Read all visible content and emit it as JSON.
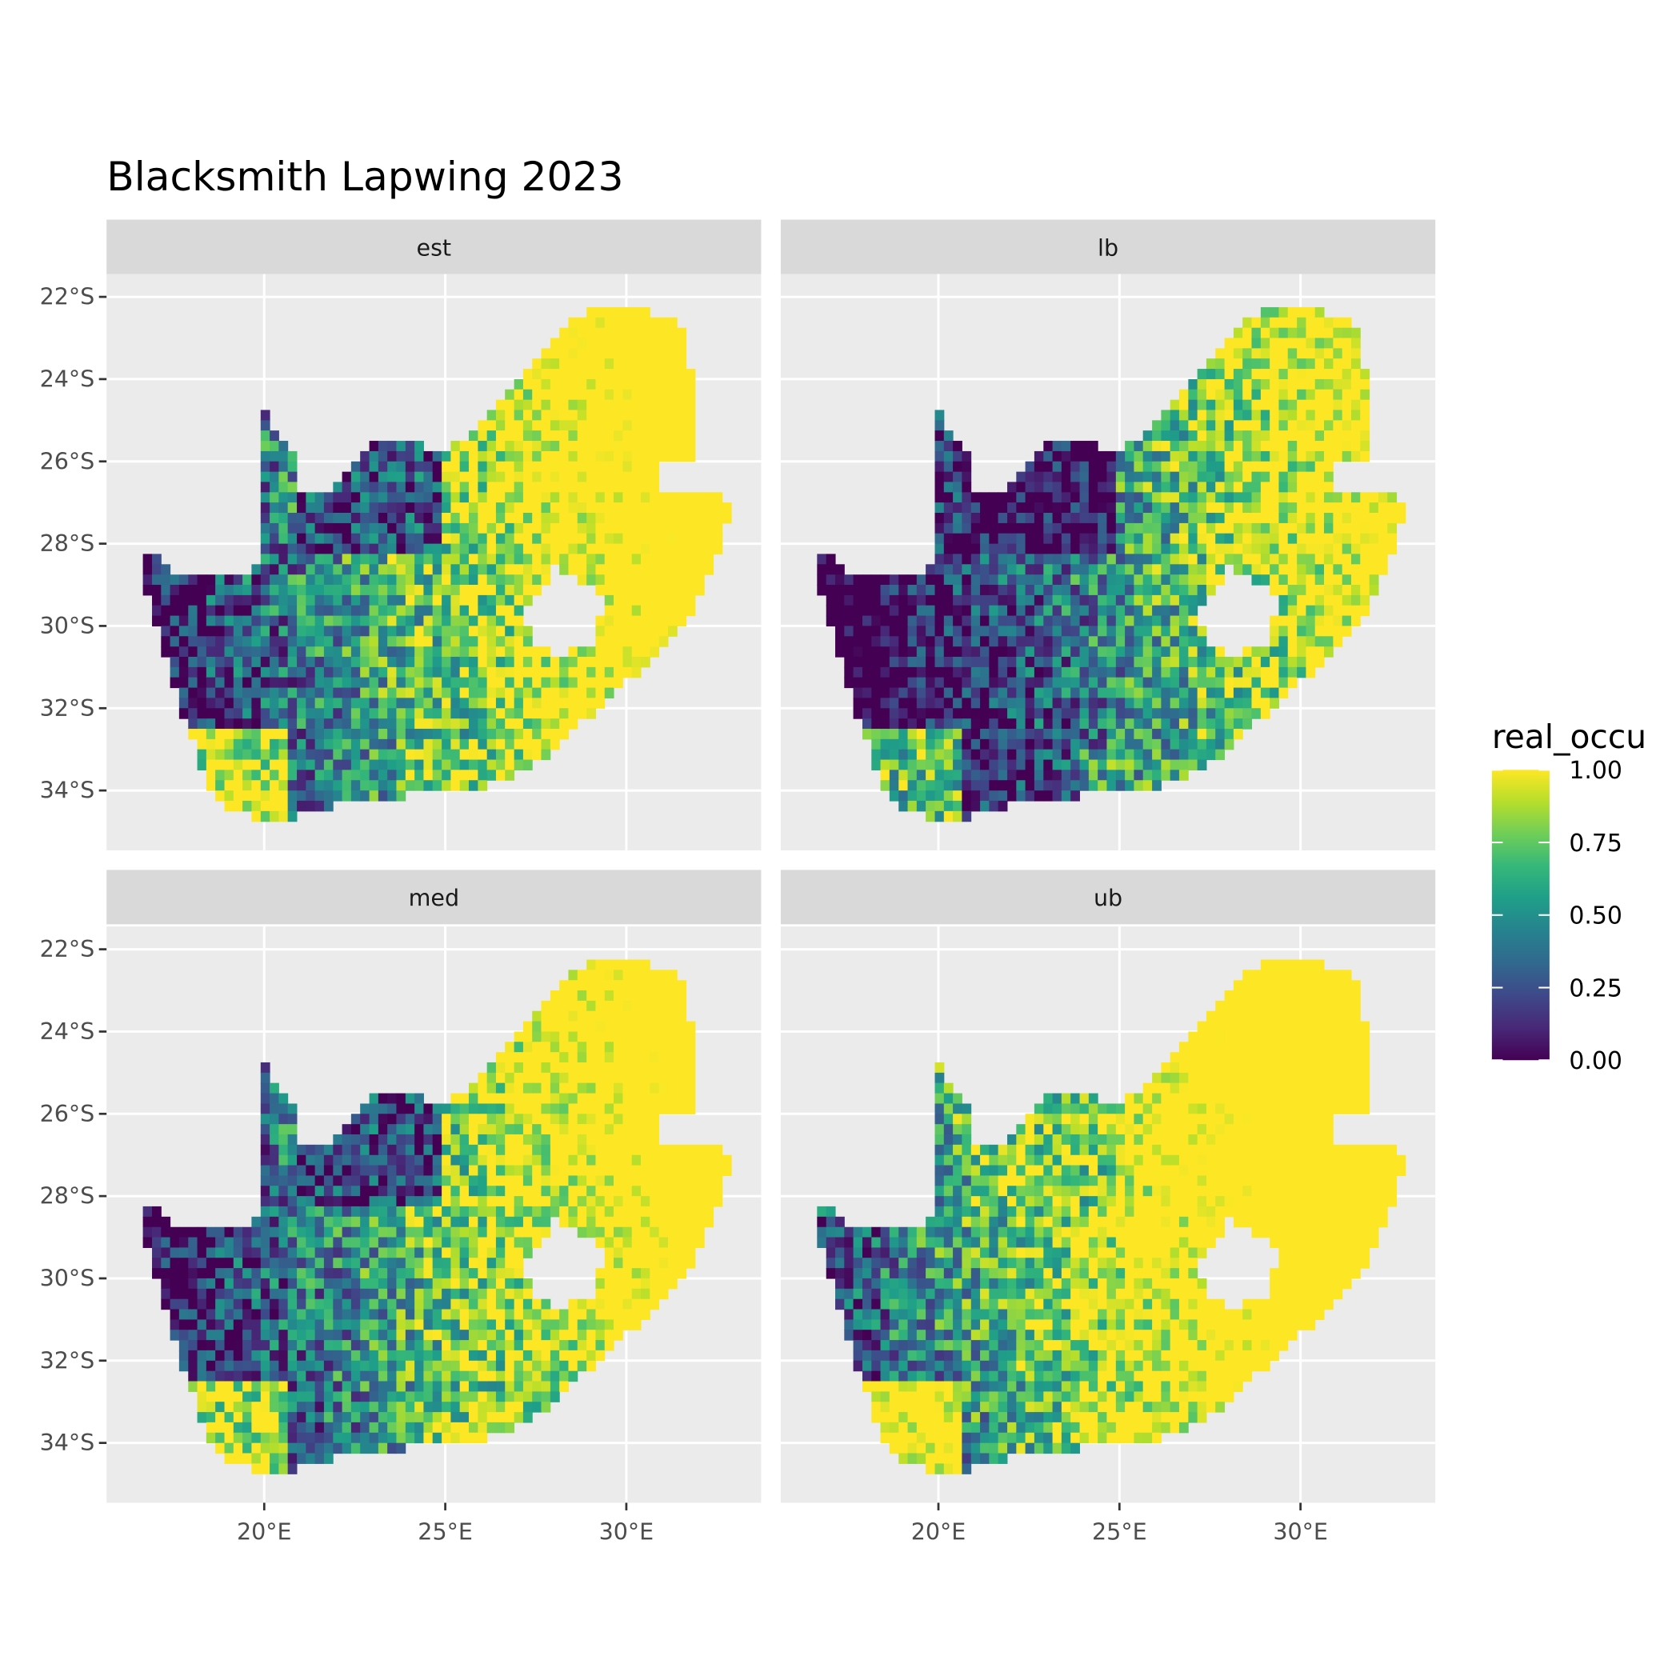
{
  "chart_data": {
    "type": "heatmap",
    "title": "Blacksmith Lapwing 2023",
    "facets": [
      "est",
      "lb",
      "med",
      "ub"
    ],
    "xlabel": "",
    "ylabel": "",
    "x_ticks": [
      20,
      25,
      30
    ],
    "x_tick_labels": [
      "20°E",
      "25°E",
      "30°E"
    ],
    "y_ticks": [
      -22,
      -24,
      -26,
      -28,
      -30,
      -32,
      -34
    ],
    "y_tick_labels": [
      "22°S",
      "24°S",
      "26°S",
      "28°S",
      "30°S",
      "32°S",
      "34°S"
    ],
    "xlim": [
      15.6,
      33.7
    ],
    "ylim": [
      -35.5,
      -21.4
    ],
    "grid": true,
    "legend": {
      "title": "real_occu",
      "placement": "right",
      "limits": [
        0,
        1
      ],
      "ticks": [
        1.0,
        0.75,
        0.5,
        0.25,
        0.0
      ],
      "tick_labels": [
        "1.00",
        "0.75",
        "0.50",
        "0.25",
        "0.00"
      ],
      "colorscale": [
        "#440154",
        "#482878",
        "#3e4989",
        "#31688e",
        "#26828e",
        "#1f9e89",
        "#35b779",
        "#6ece58",
        "#b5de2b",
        "#fde725"
      ]
    }
  },
  "colors": {
    "panel_background": "#ebebeb",
    "strip_background": "#d9d9d9",
    "grid": "#ffffff",
    "tick_text": "#4d4d4d",
    "title_text": "#000000"
  }
}
